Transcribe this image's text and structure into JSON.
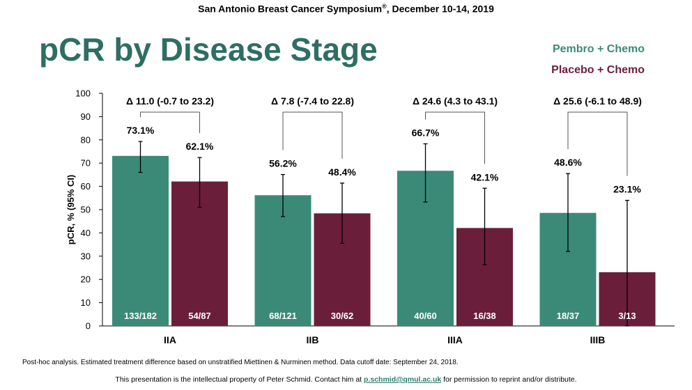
{
  "header": {
    "conference_pre": "San Antonio Breast Cancer Symposium",
    "conference_reg": "®",
    "conference_post": ", December 10-14, 2019"
  },
  "footer": {
    "note": "Post-hoc analysis. Estimated treatment difference based on unstratified Miettinen & Nurminen method. Data cutoff date: September 24, 2018.",
    "ip_pre": "This presentation is the intellectual property of Peter Schmid. Contact him at",
    "ip_email": "p.schmid@qmul.ac.uk",
    "ip_post": "for permission to reprint and/or distribute."
  },
  "colors": {
    "pembro": "#3b8a78",
    "placebo": "#6b1e3a",
    "title": "#2e6e63"
  },
  "chart_data": {
    "type": "bar",
    "title": "pCR by Disease Stage",
    "xlabel": "",
    "ylabel": "pCR, % (95% CI)",
    "ylim": [
      0,
      100
    ],
    "yticks": [
      0,
      10,
      20,
      30,
      40,
      50,
      60,
      70,
      80,
      90,
      100
    ],
    "categories": [
      "IIA",
      "IIB",
      "IIIA",
      "IIIB"
    ],
    "series": [
      {
        "name": "Pembro + Chemo",
        "values": [
          73.1,
          56.2,
          66.7,
          48.6
        ],
        "labels": [
          "73.1%",
          "56.2%",
          "66.7%",
          "48.6%"
        ],
        "ci_low": [
          66,
          47,
          53.3,
          32
        ],
        "ci_high": [
          79.3,
          65.1,
          78.3,
          65.5
        ],
        "n": [
          "133/182",
          "68/121",
          "40/60",
          "18/37"
        ]
      },
      {
        "name": "Placebo + Chemo",
        "values": [
          62.1,
          48.4,
          42.1,
          23.1
        ],
        "labels": [
          "62.1%",
          "48.4%",
          "42.1%",
          "23.1%"
        ],
        "ci_low": [
          51,
          35.5,
          26.3,
          0
        ],
        "ci_high": [
          72.4,
          61.4,
          59.2,
          54
        ],
        "n": [
          "54/87",
          "30/62",
          "16/38",
          "3/13"
        ]
      }
    ],
    "annotations": [
      "Δ 11.0 (-0.7 to 23.2)",
      "Δ 7.8 (-7.4 to 22.8)",
      "Δ 24.6 (4.3 to 43.1)",
      "Δ 25.6 (-6.1 to 48.9)"
    ],
    "legend": "top-right",
    "grid": false
  }
}
